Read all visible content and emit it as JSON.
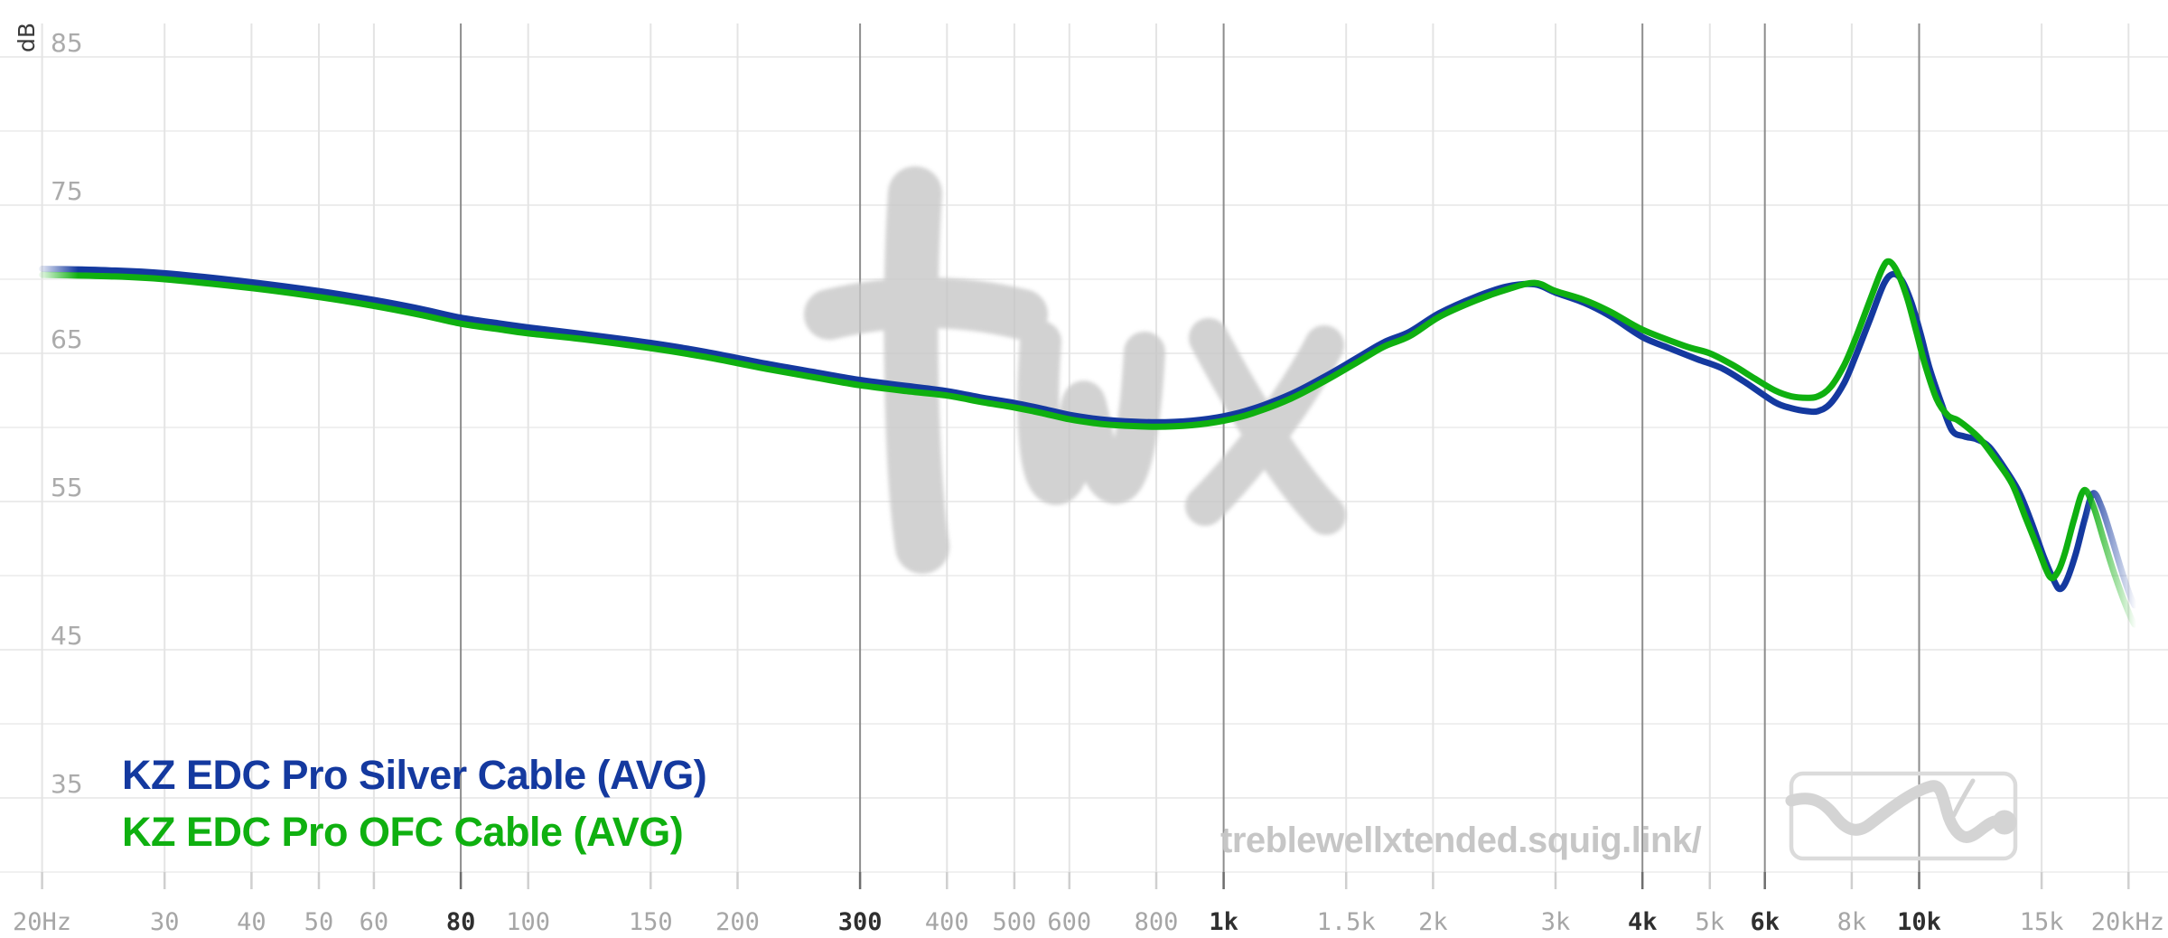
{
  "chart_data": {
    "type": "line",
    "title": "",
    "xlabel": "",
    "ylabel": "dB",
    "x_axis": {
      "scale": "log",
      "min_hz": 20,
      "max_hz": 20000,
      "ticks": [
        {
          "f": 20,
          "label": "20Hz",
          "major": false
        },
        {
          "f": 30,
          "label": "30",
          "major": false
        },
        {
          "f": 40,
          "label": "40",
          "major": false
        },
        {
          "f": 50,
          "label": "50",
          "major": false
        },
        {
          "f": 60,
          "label": "60",
          "major": false
        },
        {
          "f": 80,
          "label": "80",
          "major": true
        },
        {
          "f": 100,
          "label": "100",
          "major": false
        },
        {
          "f": 150,
          "label": "150",
          "major": false
        },
        {
          "f": 200,
          "label": "200",
          "major": false
        },
        {
          "f": 300,
          "label": "300",
          "major": true
        },
        {
          "f": 400,
          "label": "400",
          "major": false
        },
        {
          "f": 500,
          "label": "500",
          "major": false
        },
        {
          "f": 600,
          "label": "600",
          "major": false
        },
        {
          "f": 800,
          "label": "800",
          "major": false
        },
        {
          "f": 1000,
          "label": "1k",
          "major": true
        },
        {
          "f": 1500,
          "label": "1.5k",
          "major": false
        },
        {
          "f": 2000,
          "label": "2k",
          "major": false
        },
        {
          "f": 3000,
          "label": "3k",
          "major": false
        },
        {
          "f": 4000,
          "label": "4k",
          "major": true
        },
        {
          "f": 5000,
          "label": "5k",
          "major": false
        },
        {
          "f": 6000,
          "label": "6k",
          "major": true
        },
        {
          "f": 8000,
          "label": "8k",
          "major": false
        },
        {
          "f": 10000,
          "label": "10k",
          "major": true
        },
        {
          "f": 15000,
          "label": "15k",
          "major": false
        },
        {
          "f": 20000,
          "label": "20kHz",
          "major": false
        }
      ]
    },
    "y_axis": {
      "label": "dB",
      "min": 30,
      "max": 85,
      "gridline_step": 5,
      "labeled_ticks": [
        85,
        75,
        65,
        55,
        45,
        35
      ]
    },
    "grid": true,
    "legend_position": "bottom-left",
    "series": [
      {
        "name": "KZ EDC Pro Silver Cable (AVG)",
        "color": "#14399F",
        "points": [
          [
            20,
            70.7
          ],
          [
            25,
            70.6
          ],
          [
            30,
            70.4
          ],
          [
            40,
            69.8
          ],
          [
            50,
            69.2
          ],
          [
            60,
            68.6
          ],
          [
            70,
            68.0
          ],
          [
            80,
            67.4
          ],
          [
            90,
            67.05
          ],
          [
            100,
            66.75
          ],
          [
            120,
            66.3
          ],
          [
            150,
            65.7
          ],
          [
            180,
            65.1
          ],
          [
            220,
            64.3
          ],
          [
            260,
            63.7
          ],
          [
            300,
            63.2
          ],
          [
            350,
            62.8
          ],
          [
            400,
            62.45
          ],
          [
            450,
            62.0
          ],
          [
            500,
            61.65
          ],
          [
            550,
            61.25
          ],
          [
            600,
            60.85
          ],
          [
            650,
            60.6
          ],
          [
            700,
            60.45
          ],
          [
            800,
            60.35
          ],
          [
            900,
            60.45
          ],
          [
            1000,
            60.75
          ],
          [
            1100,
            61.25
          ],
          [
            1250,
            62.25
          ],
          [
            1400,
            63.45
          ],
          [
            1550,
            64.65
          ],
          [
            1700,
            65.75
          ],
          [
            1850,
            66.45
          ],
          [
            2040,
            67.7
          ],
          [
            2300,
            68.8
          ],
          [
            2550,
            69.5
          ],
          [
            2800,
            69.65
          ],
          [
            3000,
            69.1
          ],
          [
            3300,
            68.4
          ],
          [
            3600,
            67.5
          ],
          [
            4000,
            66.1
          ],
          [
            4400,
            65.3
          ],
          [
            4800,
            64.6
          ],
          [
            5200,
            64.0
          ],
          [
            5600,
            63.1
          ],
          [
            6200,
            61.7
          ],
          [
            6550,
            61.3
          ],
          [
            6900,
            61.1
          ],
          [
            7150,
            61.1
          ],
          [
            7450,
            61.6
          ],
          [
            7800,
            63.0
          ],
          [
            8100,
            64.8
          ],
          [
            8500,
            67.3
          ],
          [
            8900,
            69.7
          ],
          [
            9180,
            70.35
          ],
          [
            9450,
            69.9
          ],
          [
            9750,
            68.4
          ],
          [
            10050,
            66.3
          ],
          [
            10350,
            64.0
          ],
          [
            10750,
            61.7
          ],
          [
            11150,
            59.8
          ],
          [
            11600,
            59.4
          ],
          [
            12100,
            59.2
          ],
          [
            12600,
            58.7
          ],
          [
            13200,
            57.4
          ],
          [
            13900,
            55.7
          ],
          [
            14500,
            53.6
          ],
          [
            15100,
            51.3
          ],
          [
            15650,
            49.6
          ],
          [
            15950,
            49.1
          ],
          [
            16300,
            49.7
          ],
          [
            16800,
            51.5
          ],
          [
            17300,
            53.8
          ],
          [
            17780,
            55.55
          ],
          [
            18300,
            54.6
          ],
          [
            18900,
            52.6
          ],
          [
            19500,
            50.5
          ],
          [
            20050,
            48.8
          ],
          [
            20400,
            48.0
          ]
        ]
      },
      {
        "name": "KZ EDC Pro OFC Cable (AVG)",
        "color": "#0FB010",
        "points": [
          [
            20,
            70.3
          ],
          [
            25,
            70.2
          ],
          [
            30,
            70.0
          ],
          [
            40,
            69.4
          ],
          [
            50,
            68.8
          ],
          [
            60,
            68.2
          ],
          [
            70,
            67.6
          ],
          [
            80,
            67.0
          ],
          [
            90,
            66.65
          ],
          [
            100,
            66.35
          ],
          [
            120,
            65.95
          ],
          [
            150,
            65.35
          ],
          [
            180,
            64.75
          ],
          [
            220,
            63.95
          ],
          [
            260,
            63.35
          ],
          [
            300,
            62.85
          ],
          [
            350,
            62.45
          ],
          [
            400,
            62.15
          ],
          [
            450,
            61.7
          ],
          [
            500,
            61.35
          ],
          [
            550,
            60.95
          ],
          [
            600,
            60.55
          ],
          [
            650,
            60.3
          ],
          [
            700,
            60.15
          ],
          [
            800,
            60.05
          ],
          [
            900,
            60.15
          ],
          [
            1000,
            60.45
          ],
          [
            1100,
            60.95
          ],
          [
            1250,
            61.95
          ],
          [
            1400,
            63.15
          ],
          [
            1550,
            64.35
          ],
          [
            1700,
            65.45
          ],
          [
            1850,
            66.15
          ],
          [
            2040,
            67.45
          ],
          [
            2300,
            68.55
          ],
          [
            2550,
            69.3
          ],
          [
            2800,
            69.75
          ],
          [
            3000,
            69.2
          ],
          [
            3300,
            68.6
          ],
          [
            3600,
            67.8
          ],
          [
            4000,
            66.6
          ],
          [
            4600,
            65.5
          ],
          [
            5000,
            65.0
          ],
          [
            5400,
            64.2
          ],
          [
            5800,
            63.3
          ],
          [
            6200,
            62.5
          ],
          [
            6550,
            62.1
          ],
          [
            6900,
            62.0
          ],
          [
            7150,
            62.1
          ],
          [
            7450,
            62.7
          ],
          [
            7800,
            64.2
          ],
          [
            8100,
            66.0
          ],
          [
            8500,
            68.6
          ],
          [
            8850,
            70.7
          ],
          [
            9050,
            71.2
          ],
          [
            9300,
            70.5
          ],
          [
            9600,
            68.8
          ],
          [
            9900,
            66.5
          ],
          [
            10200,
            64.2
          ],
          [
            10600,
            61.9
          ],
          [
            11000,
            60.8
          ],
          [
            11350,
            60.5
          ],
          [
            11800,
            59.9
          ],
          [
            12300,
            59.1
          ],
          [
            12900,
            57.8
          ],
          [
            13600,
            56.2
          ],
          [
            14200,
            54.0
          ],
          [
            14800,
            51.9
          ],
          [
            15400,
            49.95
          ],
          [
            15800,
            50.2
          ],
          [
            16200,
            51.5
          ],
          [
            16700,
            53.8
          ],
          [
            17250,
            55.75
          ],
          [
            17800,
            54.7
          ],
          [
            18400,
            52.5
          ],
          [
            19000,
            50.4
          ],
          [
            19600,
            48.6
          ],
          [
            20100,
            47.3
          ],
          [
            20400,
            46.7
          ]
        ]
      }
    ]
  },
  "watermark": {
    "text": "twx",
    "color": "#c7c7c7"
  },
  "footer": {
    "url": "treblewellxtended.squig.link/"
  },
  "colors": {
    "grid_light_vertical": "#e4e4e4",
    "grid_major_vertical": "#8d8d8d",
    "grid_light_horizontal": "#f0f0f0",
    "tick_minor": "#cfcfcf",
    "tick_major": "#6d6d6d",
    "x_label_minor": "#a6a6a6",
    "x_label_major": "#2f2f2f",
    "y_label": "#ababab",
    "db_label": "#3a3a3a",
    "logo": "#d4d4d4",
    "logo_border": "#dbdbdb"
  }
}
